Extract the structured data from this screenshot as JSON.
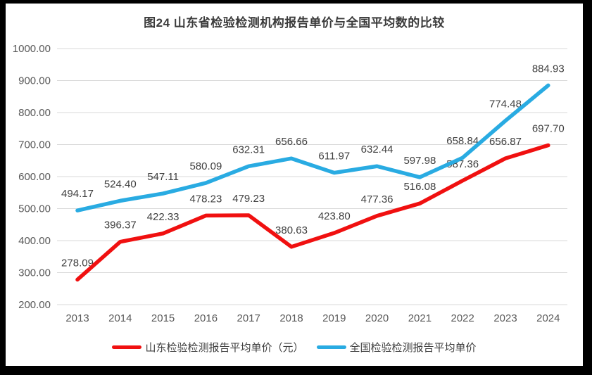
{
  "title": "图24  山东省检验检测机构报告单价与全国平均数的比较",
  "chart_data": {
    "type": "line",
    "title": "图24  山东省检验检测机构报告单价与全国平均数的比较",
    "categories": [
      "2013",
      "2014",
      "2015",
      "2016",
      "2017",
      "2018",
      "2019",
      "2020",
      "2021",
      "2022",
      "2023",
      "2024"
    ],
    "series": [
      {
        "name": "山东检验检测报告平均单价（元）",
        "color": "#f01010",
        "values": [
          278.09,
          396.37,
          422.33,
          478.23,
          479.23,
          380.63,
          423.8,
          477.36,
          516.08,
          587.36,
          656.87,
          697.7
        ]
      },
      {
        "name": "全国检验检测报告平均单价",
        "color": "#29abe2",
        "values": [
          494.17,
          524.4,
          547.11,
          580.09,
          632.31,
          656.66,
          611.97,
          632.44,
          597.98,
          658.84,
          774.48,
          884.93
        ]
      }
    ],
    "ylim": [
      200,
      1000
    ],
    "ytick_labels": [
      "1000.00",
      "900.00",
      "800.00",
      "700.00",
      "600.00",
      "500.00",
      "400.00",
      "300.00",
      "200.00"
    ],
    "grid": true,
    "data_labels": true,
    "legend_position": "bottom"
  },
  "colors": {
    "frame": "#000000",
    "background": "#ffffff",
    "gridline": "#d9d9d9",
    "tick_text": "#595959",
    "data_label_text": "#404040",
    "title_text": "#3b3b3b"
  }
}
